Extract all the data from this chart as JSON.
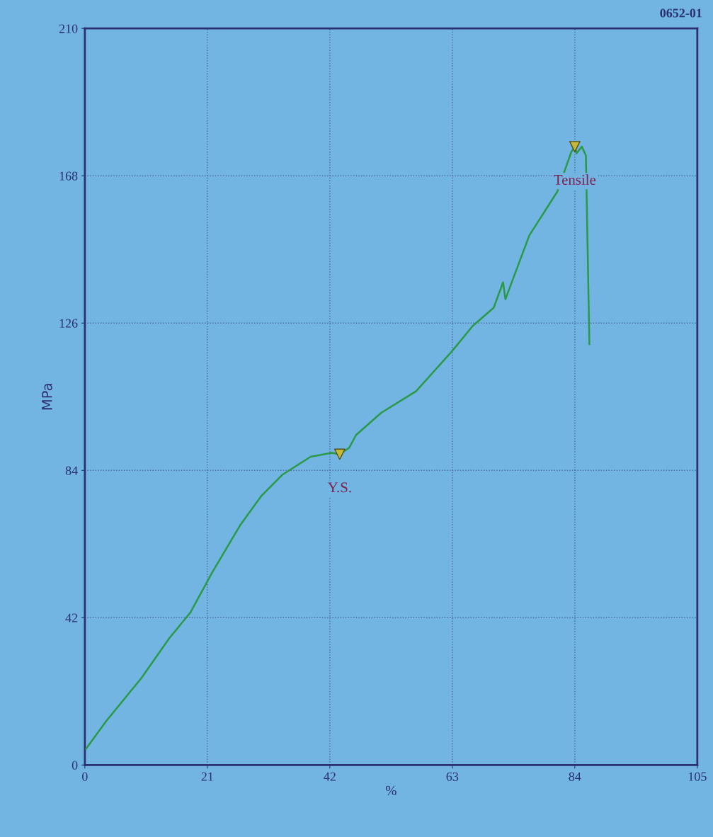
{
  "chart_data": {
    "type": "line",
    "xlabel": "%",
    "ylabel": "MPa",
    "xlim": [
      0,
      105
    ],
    "xticks": [
      0,
      21,
      42,
      63,
      84,
      105
    ],
    "ylim": [
      0,
      210
    ],
    "yticks": [
      0,
      42,
      84,
      126,
      168,
      210
    ],
    "grid": true,
    "line_style": "solid",
    "annotations": [
      {
        "text": "Y.S.",
        "x": 43.7,
        "y": 88.6
      },
      {
        "text": "Tensile",
        "x": 84.0,
        "y": 176.3
      },
      "0652-01"
    ],
    "series": [
      {
        "color": "#2a9a48",
        "marker": "none",
        "x": [
          0.2,
          3.6,
          9.7,
          14.5,
          18.1,
          21.8,
          26.6,
          30.2,
          33.9,
          38.7,
          42.3,
          43.7,
          45.3,
          46.5,
          50.8,
          56.8,
          62.9,
          66.5,
          70.1,
          71.7,
          72.1,
          76.2,
          81.0,
          83.4,
          84.0,
          84.3,
          85.2,
          85.9,
          86.5
        ],
        "values": [
          4.6,
          12.4,
          24.8,
          36.2,
          43.5,
          54.8,
          68.3,
          76.6,
          82.8,
          87.9,
          89.0,
          88.6,
          90.4,
          94.1,
          100.4,
          106.6,
          117.9,
          125.2,
          130.4,
          137.6,
          132.8,
          151.0,
          163.5,
          174.8,
          176.3,
          174.4,
          176.3,
          173.8,
          120.0
        ]
      },
      {
        "type": "scatter",
        "color": "#c8b838",
        "marker": "triangle",
        "x": [
          43.7,
          84.0
        ],
        "values": [
          88.6,
          176.3
        ]
      }
    ]
  }
}
